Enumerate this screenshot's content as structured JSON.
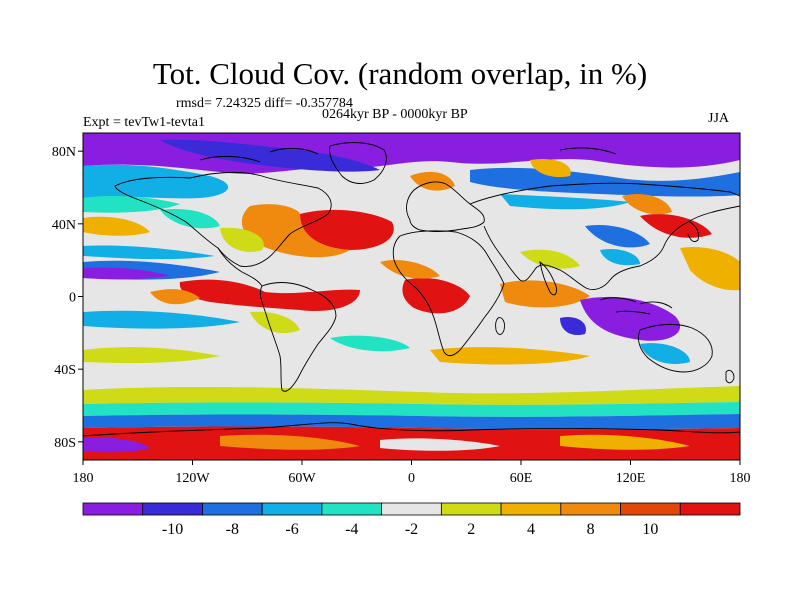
{
  "header": {
    "title": "Tot. Cloud Cov. (random overlap, in %)",
    "stats": "rmsd= 7.24325 diff= -0.357784",
    "period": "0264kyr BP - 0000kyr BP",
    "experiment": "Expt = tevTw1-tevta1",
    "season": "JJA"
  },
  "map": {
    "projection": "cylindrical-equidistant",
    "lon_range": [
      -180,
      180
    ],
    "lat_range": [
      -90,
      90
    ],
    "lat_ticks": [
      {
        "value": 80,
        "label": "80N"
      },
      {
        "value": 40,
        "label": "40N"
      },
      {
        "value": 0,
        "label": "0"
      },
      {
        "value": -40,
        "label": "40S"
      },
      {
        "value": -80,
        "label": "80S"
      }
    ],
    "lon_ticks": [
      {
        "value": -180,
        "label": "180"
      },
      {
        "value": -120,
        "label": "120W"
      },
      {
        "value": -60,
        "label": "60W"
      },
      {
        "value": 0,
        "label": "0"
      },
      {
        "value": 60,
        "label": "60E"
      },
      {
        "value": 120,
        "label": "120E"
      },
      {
        "value": 180,
        "label": "180"
      }
    ],
    "coastline_color": "#000000"
  },
  "colorbar": {
    "colors": [
      "#8a1ee0",
      "#3a2bd8",
      "#1e6fe0",
      "#12aee6",
      "#22e2c4",
      "#e6e6e6",
      "#cfdb16",
      "#f0b000",
      "#f08a0e",
      "#e0480a",
      "#e01212"
    ],
    "labels": [
      "-10",
      "-8",
      "-6",
      "-4",
      "-2",
      "2",
      "4",
      "8",
      "10"
    ]
  }
}
